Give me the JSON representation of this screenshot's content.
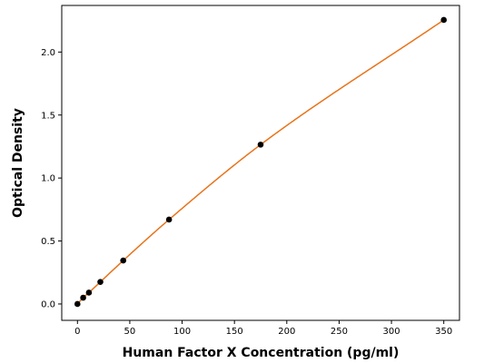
{
  "chart_data": {
    "type": "scatter",
    "title": "",
    "xlabel": "Human Factor X Concentration (pg/ml)",
    "ylabel": "Optical Density",
    "xlim": [
      -15,
      365
    ],
    "ylim": [
      -0.13,
      2.37
    ],
    "x_ticks": [
      0,
      50,
      100,
      150,
      200,
      250,
      300,
      350
    ],
    "y_ticks": [
      0.0,
      0.5,
      1.0,
      1.5,
      2.0
    ],
    "x_tick_labels": [
      "0",
      "50",
      "100",
      "150",
      "200",
      "250",
      "300",
      "350"
    ],
    "y_tick_labels": [
      "0.0",
      "0.5",
      "1.0",
      "1.5",
      "2.0"
    ],
    "grid": false,
    "legend": "none",
    "series": [
      {
        "kind": "points",
        "color": "#000000",
        "x": [
          0,
          5.47,
          10.94,
          21.88,
          43.75,
          87.5,
          175,
          350
        ],
        "y": [
          0.0,
          0.05,
          0.09,
          0.175,
          0.345,
          0.67,
          1.265,
          2.255
        ]
      },
      {
        "kind": "fit-curve",
        "color": "#e8731a",
        "x_range": [
          0,
          350
        ]
      }
    ]
  }
}
